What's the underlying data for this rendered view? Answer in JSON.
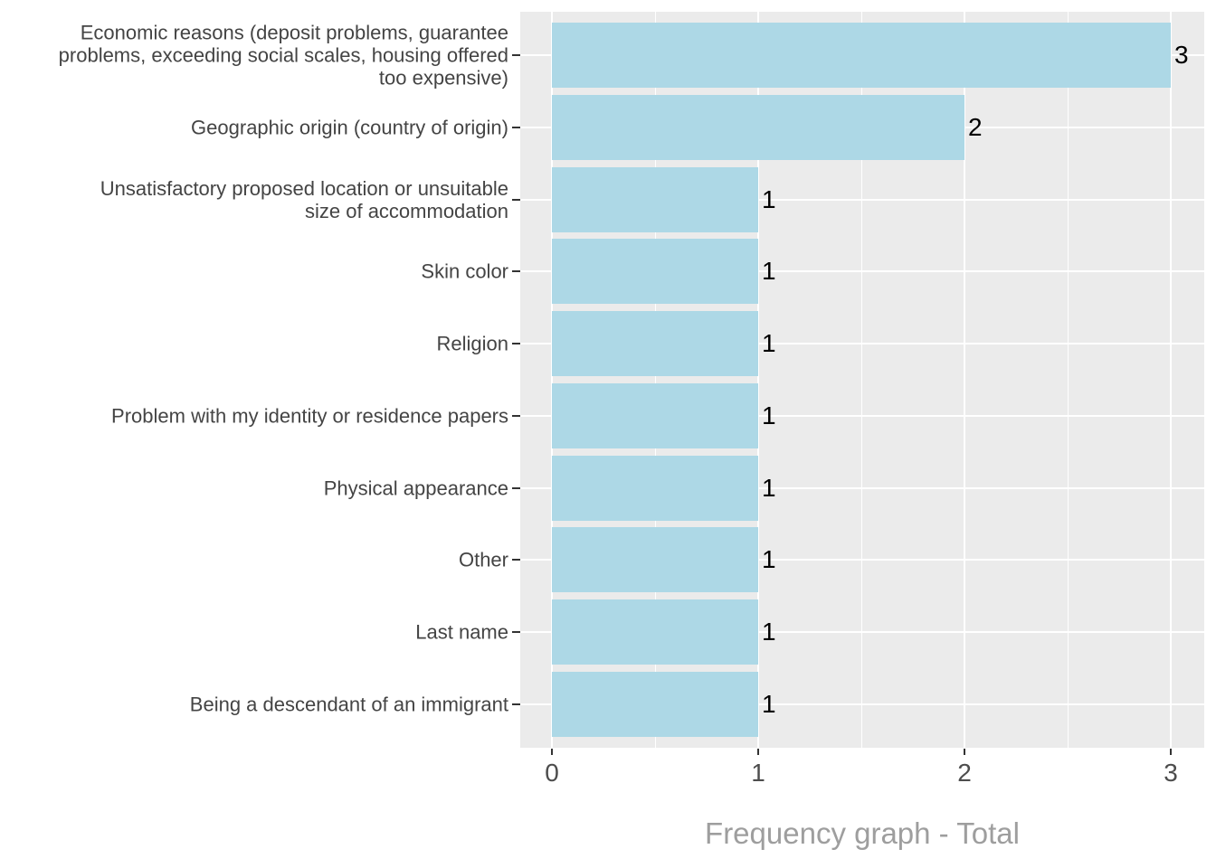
{
  "chart_data": {
    "type": "bar",
    "orientation": "horizontal",
    "title": "Frequency graph - Total",
    "xlabel": "Frequency graph - Total",
    "ylabel": "",
    "categories": [
      "Economic reasons (deposit problems, guarantee\nproblems, exceeding social scales, housing offered\ntoo expensive)",
      "Geographic origin (country of origin)",
      "Unsatisfactory proposed location or unsuitable\nsize of accommodation",
      "Skin color",
      "Religion",
      "Problem with my identity or residence papers",
      "Physical appearance",
      "Other",
      "Last name",
      "Being a descendant of an immigrant"
    ],
    "values": [
      3,
      2,
      1,
      1,
      1,
      1,
      1,
      1,
      1,
      1
    ],
    "bar_value_labels": [
      "3",
      "2",
      "1",
      "1",
      "1",
      "1",
      "1",
      "1",
      "1",
      "1"
    ],
    "x_ticks": [
      "0",
      "1",
      "2",
      "3"
    ],
    "x_tick_values": [
      0,
      1,
      2,
      3
    ],
    "x_minor_gridlines": [
      0.5,
      1.5,
      2.5
    ],
    "xlim": [
      0,
      3
    ],
    "grid": "on",
    "legend_position": "none",
    "colors": {
      "bar_fill": "#ADD8E6",
      "panel_background": "#EBEBEB",
      "gridline": "#FFFFFF",
      "axis_text": "#4D4D4D",
      "category_text": "#444444",
      "value_label_text": "#000000",
      "axis_title_text": "#9E9E9E",
      "tick_mark": "#333333",
      "page_background": "#FFFFFF"
    }
  }
}
